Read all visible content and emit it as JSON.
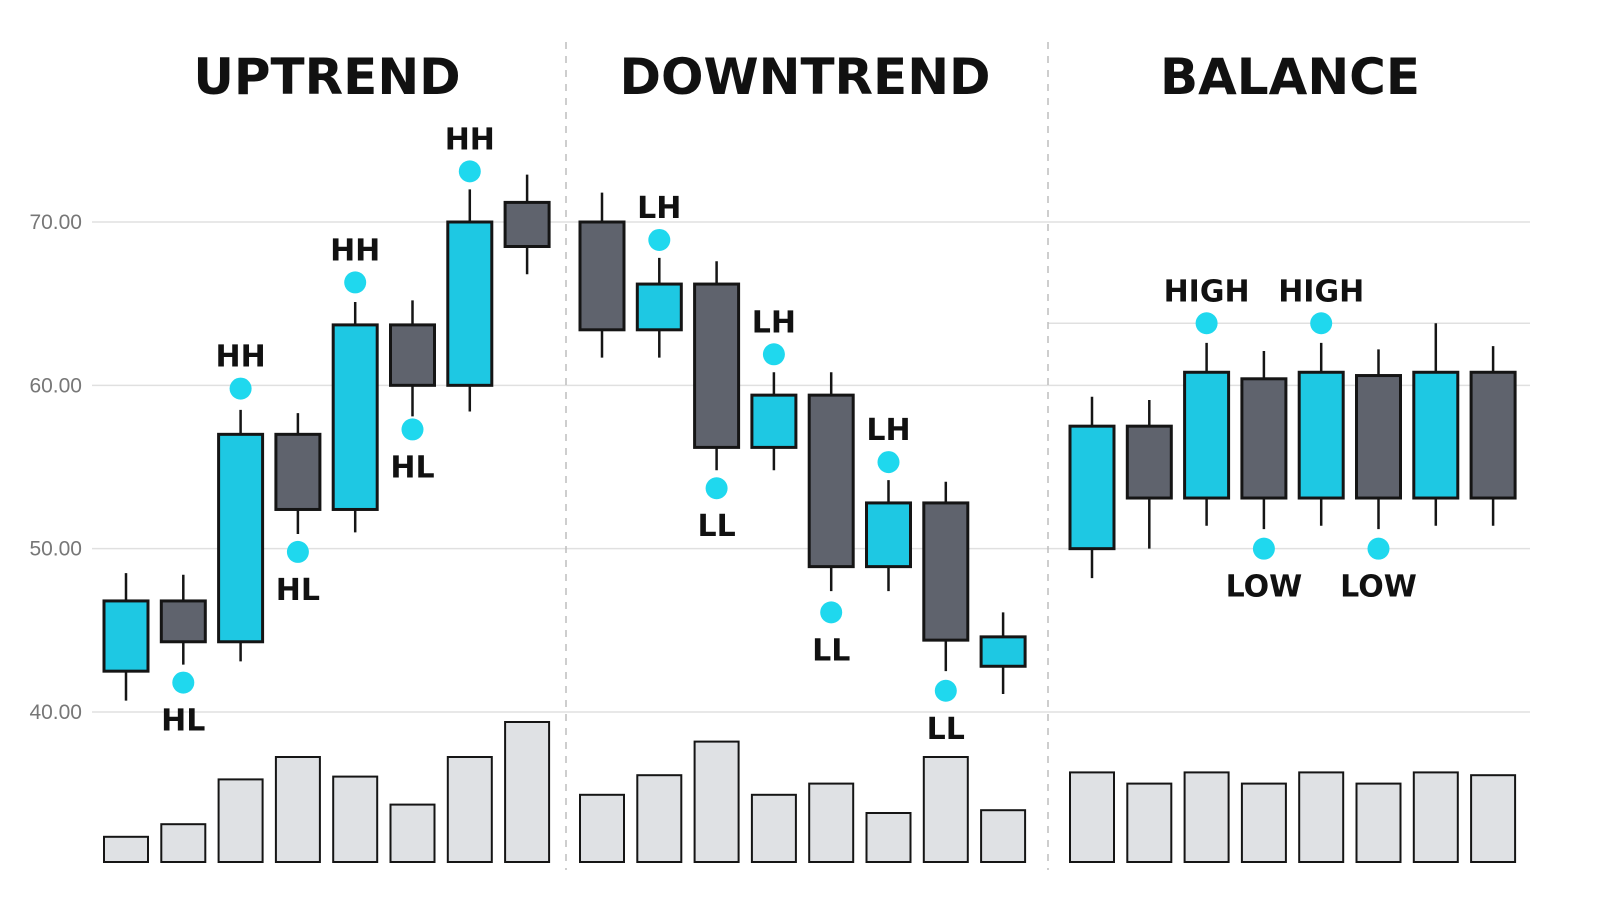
{
  "chart_data": {
    "type": "candlestick",
    "y_ticks": [
      "40.00",
      "50.00",
      "60.00",
      "70.00"
    ],
    "y_tick_values": [
      40,
      50,
      60,
      70
    ],
    "ylim": [
      40,
      70
    ],
    "grid": true,
    "colors": {
      "bullish": "#1ec8e3",
      "bearish": "#5f636d",
      "outline": "#151515",
      "marker": "#1fd8ee",
      "volume": "#dfe1e4",
      "grid": "#e0e0e0",
      "divider": "#bdbdbd"
    },
    "panels": [
      {
        "title": "UPTREND",
        "candles": [
          {
            "open": 42.5,
            "high": 48.5,
            "low": 40.7,
            "close": 46.8
          },
          {
            "open": 46.8,
            "high": 48.4,
            "low": 42.9,
            "close": 44.3
          },
          {
            "open": 44.3,
            "high": 58.5,
            "low": 43.1,
            "close": 57.0
          },
          {
            "open": 57.0,
            "high": 58.3,
            "low": 50.9,
            "close": 52.4
          },
          {
            "open": 52.4,
            "high": 65.1,
            "low": 51.0,
            "close": 63.7
          },
          {
            "open": 63.7,
            "high": 65.2,
            "low": 58.1,
            "close": 60.0
          },
          {
            "open": 60.0,
            "high": 72.0,
            "low": 58.4,
            "close": 70.0
          },
          {
            "open": 71.2,
            "high": 72.9,
            "low": 66.8,
            "close": 68.5
          }
        ],
        "volume": [
          18,
          27,
          59,
          75,
          61,
          41,
          75,
          100
        ],
        "markers": [
          {
            "label": "HL",
            "candle": 1,
            "value": 41.8,
            "pos": "below"
          },
          {
            "label": "HH",
            "candle": 2,
            "value": 59.8,
            "pos": "above"
          },
          {
            "label": "HL",
            "candle": 3,
            "value": 49.8,
            "pos": "below"
          },
          {
            "label": "HH",
            "candle": 4,
            "value": 66.3,
            "pos": "above"
          },
          {
            "label": "HL",
            "candle": 5,
            "value": 57.3,
            "pos": "below"
          },
          {
            "label": "HH",
            "candle": 6,
            "value": 73.1,
            "pos": "above"
          }
        ]
      },
      {
        "title": "DOWNTREND",
        "candles": [
          {
            "open": 70.0,
            "high": 71.8,
            "low": 61.7,
            "close": 63.4
          },
          {
            "open": 63.4,
            "high": 67.8,
            "low": 61.7,
            "close": 66.2
          },
          {
            "open": 66.2,
            "high": 67.6,
            "low": 54.8,
            "close": 56.2
          },
          {
            "open": 56.2,
            "high": 60.8,
            "low": 54.8,
            "close": 59.4
          },
          {
            "open": 59.4,
            "high": 60.8,
            "low": 47.4,
            "close": 48.9
          },
          {
            "open": 48.9,
            "high": 54.2,
            "low": 47.4,
            "close": 52.8
          },
          {
            "open": 52.8,
            "high": 54.1,
            "low": 42.5,
            "close": 44.4
          },
          {
            "open": 42.8,
            "high": 46.1,
            "low": 41.1,
            "close": 44.6
          }
        ],
        "volume": [
          48,
          62,
          86,
          48,
          56,
          35,
          75,
          37
        ],
        "markers": [
          {
            "label": "LH",
            "candle": 1,
            "value": 68.9,
            "pos": "above"
          },
          {
            "label": "LL",
            "candle": 2,
            "value": 53.7,
            "pos": "below"
          },
          {
            "label": "LH",
            "candle": 3,
            "value": 61.9,
            "pos": "above"
          },
          {
            "label": "LL",
            "candle": 4,
            "value": 46.1,
            "pos": "below"
          },
          {
            "label": "LH",
            "candle": 5,
            "value": 55.3,
            "pos": "above"
          },
          {
            "label": "LL",
            "candle": 6,
            "value": 41.3,
            "pos": "below"
          }
        ]
      },
      {
        "title": "BALANCE",
        "reference_line": 63.8,
        "candles": [
          {
            "open": 50.0,
            "high": 59.3,
            "low": 48.2,
            "close": 57.5
          },
          {
            "open": 57.5,
            "high": 59.1,
            "low": 50.0,
            "close": 53.1
          },
          {
            "open": 53.1,
            "high": 62.6,
            "low": 51.4,
            "close": 60.8
          },
          {
            "open": 60.4,
            "high": 62.1,
            "low": 51.2,
            "close": 53.1
          },
          {
            "open": 53.1,
            "high": 62.6,
            "low": 51.4,
            "close": 60.8
          },
          {
            "open": 60.6,
            "high": 62.2,
            "low": 51.2,
            "close": 53.1
          },
          {
            "open": 53.1,
            "high": 63.8,
            "low": 51.4,
            "close": 60.8
          },
          {
            "open": 60.8,
            "high": 62.4,
            "low": 51.4,
            "close": 53.1
          }
        ],
        "volume": [
          64,
          56,
          64,
          56,
          64,
          56,
          64,
          62
        ],
        "markers": [
          {
            "label": "HIGH",
            "candle": 2,
            "value": 63.8,
            "pos": "above"
          },
          {
            "label": "LOW",
            "candle": 3,
            "value": 50.0,
            "pos": "below"
          },
          {
            "label": "HIGH",
            "candle": 4,
            "value": 63.8,
            "pos": "above"
          },
          {
            "label": "LOW",
            "candle": 5,
            "value": 50.0,
            "pos": "below"
          }
        ]
      }
    ]
  }
}
